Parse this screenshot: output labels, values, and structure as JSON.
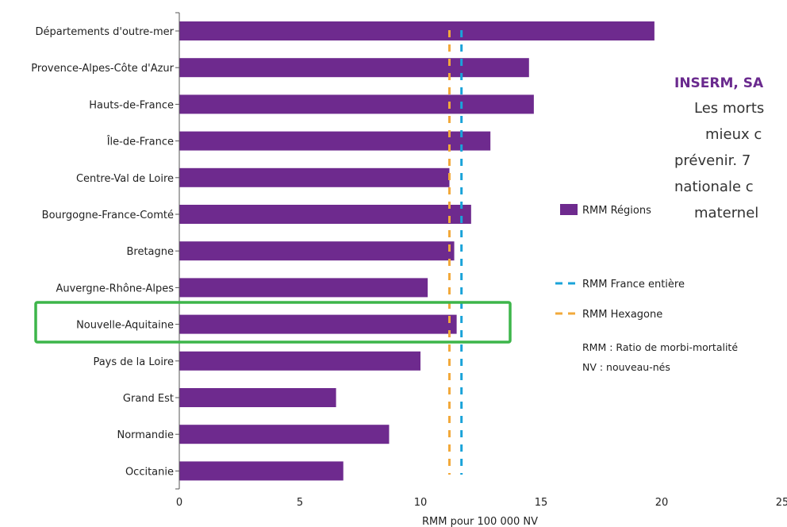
{
  "chart_data": {
    "type": "bar",
    "orientation": "horizontal",
    "categories": [
      "Départements d'outre-mer",
      "Provence-Alpes-Côte d'Azur",
      "Hauts-de-France",
      "Île-de-France",
      "Centre-Val de Loire",
      "Bourgogne-France-Comté",
      "Bretagne",
      "Auvergne-Rhône-Alpes",
      "Nouvelle-Aquitaine",
      "Pays de la Loire",
      "Grand Est",
      "Normandie",
      "Occitanie"
    ],
    "series": [
      {
        "name": "RMM Régions",
        "values": [
          19.7,
          14.5,
          14.7,
          12.9,
          11.2,
          12.1,
          11.4,
          10.3,
          11.5,
          10.0,
          6.5,
          8.7,
          6.8
        ]
      }
    ],
    "reference_lines": [
      {
        "name": "RMM France entière",
        "value": 11.7,
        "color": "#1aa3d9",
        "style": "dashed"
      },
      {
        "name": "RMM Hexagone",
        "value": 11.2,
        "color": "#f2a93b",
        "style": "dashed"
      }
    ],
    "xlabel": "RMM pour 100 000 NV",
    "xlim": [
      0,
      25
    ],
    "xticks": [
      0,
      5,
      10,
      15,
      20,
      25
    ],
    "highlighted_category": "Nouvelle-Aquitaine",
    "legend_position": "right",
    "notes": [
      "RMM : Ratio de morbi-mortalité",
      "NV : nouveau-nés"
    ],
    "side_text": {
      "title": "INSERM, SA",
      "lines": [
        "Les morts",
        "mieux c",
        "prévenir. 7",
        "nationale c",
        "maternel"
      ]
    },
    "colors": {
      "bar": "#6e2a8e",
      "highlight": "#3db54a",
      "title": "#6a2a8e"
    }
  }
}
